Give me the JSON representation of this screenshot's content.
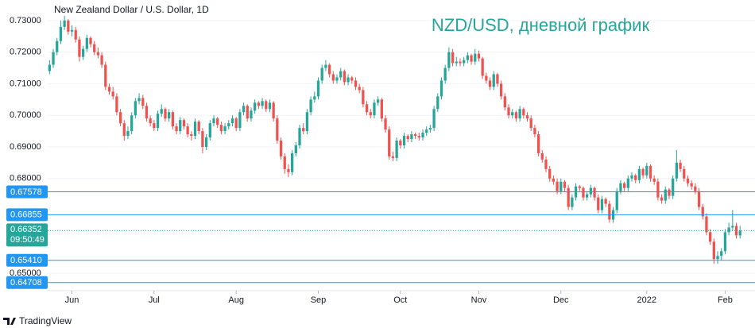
{
  "chart_data": {
    "type": "candlestick",
    "title": "New Zealand Dollar / U.S. Dollar, 1D",
    "annotation": "NZD/USD, дневной график",
    "footer": "TradingView",
    "up_color": "#26a69a",
    "down_color": "#ef5350",
    "line_color": "#2196f3",
    "ylim": [
      0.6445,
      0.7365
    ],
    "yticks": [
      {
        "value": 0.73,
        "label": "0.73000"
      },
      {
        "value": 0.72,
        "label": "0.72000"
      },
      {
        "value": 0.71,
        "label": "0.71000"
      },
      {
        "value": 0.7,
        "label": "0.70000"
      },
      {
        "value": 0.69,
        "label": "0.69000"
      },
      {
        "value": 0.68,
        "label": "0.68000"
      },
      {
        "value": 0.65,
        "label": "0.65000"
      }
    ],
    "xlim": [
      -0.5,
      189
    ],
    "xticks": [
      {
        "value": 6,
        "label": "Jun"
      },
      {
        "value": 28,
        "label": "Jul"
      },
      {
        "value": 50,
        "label": "Aug"
      },
      {
        "value": 72,
        "label": "Sep"
      },
      {
        "value": 94,
        "label": "Oct"
      },
      {
        "value": 115,
        "label": "Nov"
      },
      {
        "value": 137,
        "label": "Dec"
      },
      {
        "value": 160,
        "label": "2022"
      },
      {
        "value": 181,
        "label": "Feb"
      }
    ],
    "price_lines": [
      {
        "value": 0.67578,
        "label": "0.67578"
      },
      {
        "value": 0.66855,
        "label": "0.66855"
      },
      {
        "value": 0.6541,
        "label": "0.65410"
      },
      {
        "value": 0.64708,
        "label": "0.64708"
      }
    ],
    "current_price": {
      "value": 0.66352,
      "label": "0.66352",
      "countdown": "09:50:49"
    },
    "candles": [
      [
        0.714,
        0.7175,
        0.713,
        0.716
      ],
      [
        0.716,
        0.721,
        0.715,
        0.72
      ],
      [
        0.72,
        0.7245,
        0.719,
        0.7235
      ],
      [
        0.7235,
        0.73,
        0.7225,
        0.728
      ],
      [
        0.728,
        0.7315,
        0.727,
        0.73
      ],
      [
        0.73,
        0.7305,
        0.7255,
        0.7265
      ],
      [
        0.7265,
        0.7285,
        0.725,
        0.727
      ],
      [
        0.727,
        0.728,
        0.723,
        0.724
      ],
      [
        0.724,
        0.725,
        0.717,
        0.7185
      ],
      [
        0.7185,
        0.722,
        0.7175,
        0.721
      ],
      [
        0.721,
        0.7255,
        0.72,
        0.7245
      ],
      [
        0.7245,
        0.725,
        0.7215,
        0.7225
      ],
      [
        0.7225,
        0.7235,
        0.719,
        0.72
      ],
      [
        0.72,
        0.7215,
        0.718,
        0.719
      ],
      [
        0.719,
        0.72,
        0.715,
        0.716
      ],
      [
        0.716,
        0.717,
        0.708,
        0.709
      ],
      [
        0.709,
        0.71,
        0.7065,
        0.7075
      ],
      [
        0.7075,
        0.709,
        0.705,
        0.706
      ],
      [
        0.706,
        0.707,
        0.7,
        0.701
      ],
      [
        0.701,
        0.702,
        0.6965,
        0.6975
      ],
      [
        0.6975,
        0.6985,
        0.692,
        0.6935
      ],
      [
        0.6935,
        0.6965,
        0.6925,
        0.695
      ],
      [
        0.695,
        0.701,
        0.694,
        0.7
      ],
      [
        0.7,
        0.7055,
        0.699,
        0.7045
      ],
      [
        0.7045,
        0.707,
        0.7035,
        0.7055
      ],
      [
        0.7055,
        0.7065,
        0.702,
        0.703
      ],
      [
        0.703,
        0.704,
        0.698,
        0.699
      ],
      [
        0.699,
        0.7,
        0.6965,
        0.6975
      ],
      [
        0.6975,
        0.6985,
        0.695,
        0.696
      ],
      [
        0.696,
        0.7015,
        0.695,
        0.7005
      ],
      [
        0.7005,
        0.7035,
        0.6995,
        0.702
      ],
      [
        0.702,
        0.7025,
        0.698,
        0.699
      ],
      [
        0.699,
        0.702,
        0.698,
        0.701
      ],
      [
        0.701,
        0.7015,
        0.6955,
        0.6965
      ],
      [
        0.6965,
        0.6975,
        0.694,
        0.695
      ],
      [
        0.695,
        0.6995,
        0.694,
        0.6985
      ],
      [
        0.6985,
        0.699,
        0.6955,
        0.6965
      ],
      [
        0.6965,
        0.6975,
        0.693,
        0.694
      ],
      [
        0.694,
        0.695,
        0.692,
        0.6935
      ],
      [
        0.6935,
        0.699,
        0.6925,
        0.698
      ],
      [
        0.698,
        0.6985,
        0.694,
        0.695
      ],
      [
        0.695,
        0.696,
        0.688,
        0.69
      ],
      [
        0.69,
        0.694,
        0.689,
        0.693
      ],
      [
        0.693,
        0.6985,
        0.692,
        0.6975
      ],
      [
        0.6975,
        0.7,
        0.6965,
        0.699
      ],
      [
        0.699,
        0.6995,
        0.696,
        0.697
      ],
      [
        0.697,
        0.698,
        0.694,
        0.695
      ],
      [
        0.695,
        0.6975,
        0.694,
        0.6965
      ],
      [
        0.6965,
        0.6985,
        0.6955,
        0.6975
      ],
      [
        0.6975,
        0.7,
        0.6965,
        0.699
      ],
      [
        0.699,
        0.6995,
        0.695,
        0.696
      ],
      [
        0.696,
        0.702,
        0.695,
        0.701
      ],
      [
        0.701,
        0.704,
        0.7,
        0.703
      ],
      [
        0.703,
        0.7035,
        0.698,
        0.699
      ],
      [
        0.699,
        0.7025,
        0.698,
        0.7015
      ],
      [
        0.7015,
        0.705,
        0.7005,
        0.704
      ],
      [
        0.704,
        0.7045,
        0.702,
        0.703
      ],
      [
        0.703,
        0.7055,
        0.702,
        0.7045
      ],
      [
        0.7045,
        0.705,
        0.701,
        0.702
      ],
      [
        0.702,
        0.705,
        0.701,
        0.704
      ],
      [
        0.704,
        0.7045,
        0.698,
        0.699
      ],
      [
        0.699,
        0.7,
        0.691,
        0.692
      ],
      [
        0.692,
        0.693,
        0.686,
        0.687
      ],
      [
        0.687,
        0.688,
        0.6815,
        0.683
      ],
      [
        0.683,
        0.6845,
        0.6805,
        0.682
      ],
      [
        0.682,
        0.689,
        0.681,
        0.688
      ],
      [
        0.688,
        0.6915,
        0.687,
        0.6905
      ],
      [
        0.6905,
        0.697,
        0.6895,
        0.696
      ],
      [
        0.696,
        0.6975,
        0.694,
        0.695
      ],
      [
        0.695,
        0.702,
        0.694,
        0.701
      ],
      [
        0.701,
        0.706,
        0.7,
        0.705
      ],
      [
        0.705,
        0.7075,
        0.704,
        0.706
      ],
      [
        0.706,
        0.712,
        0.705,
        0.711
      ],
      [
        0.711,
        0.716,
        0.71,
        0.715
      ],
      [
        0.715,
        0.7175,
        0.714,
        0.716
      ],
      [
        0.716,
        0.7165,
        0.712,
        0.713
      ],
      [
        0.713,
        0.714,
        0.71,
        0.711
      ],
      [
        0.711,
        0.713,
        0.71,
        0.712
      ],
      [
        0.712,
        0.715,
        0.711,
        0.714
      ],
      [
        0.714,
        0.7145,
        0.7095,
        0.7105
      ],
      [
        0.7105,
        0.713,
        0.7095,
        0.712
      ],
      [
        0.712,
        0.7125,
        0.71,
        0.711
      ],
      [
        0.711,
        0.712,
        0.708,
        0.709
      ],
      [
        0.709,
        0.71,
        0.707,
        0.708
      ],
      [
        0.708,
        0.709,
        0.7025,
        0.7035
      ],
      [
        0.7035,
        0.7045,
        0.7,
        0.701
      ],
      [
        0.701,
        0.702,
        0.699,
        0.7
      ],
      [
        0.7,
        0.705,
        0.699,
        0.704
      ],
      [
        0.704,
        0.706,
        0.703,
        0.705
      ],
      [
        0.705,
        0.7055,
        0.698,
        0.699
      ],
      [
        0.699,
        0.7,
        0.6945,
        0.6955
      ],
      [
        0.6955,
        0.6965,
        0.686,
        0.687
      ],
      [
        0.687,
        0.6885,
        0.6855,
        0.6865
      ],
      [
        0.6865,
        0.693,
        0.6855,
        0.692
      ],
      [
        0.692,
        0.6925,
        0.6895,
        0.6905
      ],
      [
        0.6905,
        0.6945,
        0.6895,
        0.6935
      ],
      [
        0.6935,
        0.694,
        0.6915,
        0.6925
      ],
      [
        0.6925,
        0.695,
        0.6915,
        0.694
      ],
      [
        0.694,
        0.6945,
        0.6925,
        0.6935
      ],
      [
        0.6935,
        0.6945,
        0.692,
        0.693
      ],
      [
        0.693,
        0.6955,
        0.692,
        0.6945
      ],
      [
        0.6945,
        0.6965,
        0.6935,
        0.6955
      ],
      [
        0.6955,
        0.697,
        0.6945,
        0.696
      ],
      [
        0.696,
        0.703,
        0.695,
        0.702
      ],
      [
        0.702,
        0.707,
        0.701,
        0.706
      ],
      [
        0.706,
        0.712,
        0.705,
        0.711
      ],
      [
        0.711,
        0.716,
        0.71,
        0.715
      ],
      [
        0.715,
        0.7215,
        0.714,
        0.72
      ],
      [
        0.72,
        0.721,
        0.7155,
        0.7165
      ],
      [
        0.7165,
        0.7185,
        0.7155,
        0.717
      ],
      [
        0.717,
        0.718,
        0.7155,
        0.7165
      ],
      [
        0.7165,
        0.7185,
        0.7155,
        0.7175
      ],
      [
        0.7175,
        0.72,
        0.7165,
        0.719
      ],
      [
        0.719,
        0.7195,
        0.716,
        0.717
      ],
      [
        0.717,
        0.721,
        0.716,
        0.7195
      ],
      [
        0.7195,
        0.7205,
        0.717,
        0.718
      ],
      [
        0.718,
        0.7185,
        0.7115,
        0.7125
      ],
      [
        0.7125,
        0.7135,
        0.71,
        0.711
      ],
      [
        0.711,
        0.712,
        0.708,
        0.709
      ],
      [
        0.709,
        0.714,
        0.708,
        0.713
      ],
      [
        0.713,
        0.7135,
        0.709,
        0.71
      ],
      [
        0.71,
        0.711,
        0.705,
        0.706
      ],
      [
        0.706,
        0.707,
        0.7015,
        0.7025
      ],
      [
        0.7025,
        0.7035,
        0.699,
        0.7
      ],
      [
        0.7,
        0.702,
        0.699,
        0.701
      ],
      [
        0.701,
        0.7015,
        0.698,
        0.699
      ],
      [
        0.699,
        0.703,
        0.698,
        0.702
      ],
      [
        0.702,
        0.7025,
        0.699,
        0.7
      ],
      [
        0.7,
        0.701,
        0.698,
        0.699
      ],
      [
        0.699,
        0.7,
        0.695,
        0.696
      ],
      [
        0.696,
        0.697,
        0.693,
        0.694
      ],
      [
        0.694,
        0.695,
        0.687,
        0.688
      ],
      [
        0.688,
        0.689,
        0.685,
        0.686
      ],
      [
        0.686,
        0.687,
        0.682,
        0.683
      ],
      [
        0.683,
        0.684,
        0.679,
        0.68
      ],
      [
        0.68,
        0.681,
        0.678,
        0.679
      ],
      [
        0.679,
        0.68,
        0.675,
        0.676
      ],
      [
        0.676,
        0.68,
        0.675,
        0.679
      ],
      [
        0.679,
        0.6795,
        0.676,
        0.677
      ],
      [
        0.677,
        0.678,
        0.67,
        0.671
      ],
      [
        0.671,
        0.675,
        0.67,
        0.674
      ],
      [
        0.674,
        0.6785,
        0.673,
        0.6775
      ],
      [
        0.6775,
        0.678,
        0.676,
        0.677
      ],
      [
        0.677,
        0.6775,
        0.673,
        0.674
      ],
      [
        0.674,
        0.676,
        0.673,
        0.675
      ],
      [
        0.675,
        0.678,
        0.674,
        0.677
      ],
      [
        0.677,
        0.6775,
        0.673,
        0.674
      ],
      [
        0.674,
        0.675,
        0.669,
        0.67
      ],
      [
        0.67,
        0.6745,
        0.669,
        0.6735
      ],
      [
        0.6735,
        0.674,
        0.671,
        0.672
      ],
      [
        0.672,
        0.673,
        0.666,
        0.667
      ],
      [
        0.667,
        0.671,
        0.666,
        0.67
      ],
      [
        0.67,
        0.677,
        0.669,
        0.676
      ],
      [
        0.676,
        0.6795,
        0.675,
        0.6785
      ],
      [
        0.6785,
        0.679,
        0.676,
        0.677
      ],
      [
        0.677,
        0.681,
        0.676,
        0.68
      ],
      [
        0.68,
        0.682,
        0.679,
        0.681
      ],
      [
        0.681,
        0.6815,
        0.6785,
        0.6795
      ],
      [
        0.6795,
        0.684,
        0.6785,
        0.683
      ],
      [
        0.683,
        0.6835,
        0.68,
        0.681
      ],
      [
        0.681,
        0.685,
        0.68,
        0.684
      ],
      [
        0.684,
        0.6845,
        0.679,
        0.68
      ],
      [
        0.68,
        0.681,
        0.678,
        0.679
      ],
      [
        0.679,
        0.68,
        0.673,
        0.674
      ],
      [
        0.674,
        0.675,
        0.672,
        0.673
      ],
      [
        0.673,
        0.6775,
        0.672,
        0.6765
      ],
      [
        0.6765,
        0.677,
        0.6735,
        0.6745
      ],
      [
        0.6745,
        0.681,
        0.6735,
        0.68
      ],
      [
        0.68,
        0.689,
        0.679,
        0.685
      ],
      [
        0.685,
        0.686,
        0.682,
        0.683
      ],
      [
        0.683,
        0.684,
        0.679,
        0.68
      ],
      [
        0.68,
        0.681,
        0.6775,
        0.6785
      ],
      [
        0.6785,
        0.6795,
        0.6765,
        0.6775
      ],
      [
        0.6775,
        0.6785,
        0.675,
        0.676
      ],
      [
        0.676,
        0.677,
        0.67,
        0.671
      ],
      [
        0.671,
        0.672,
        0.667,
        0.668
      ],
      [
        0.668,
        0.669,
        0.662,
        0.663
      ],
      [
        0.663,
        0.664,
        0.659,
        0.66
      ],
      [
        0.66,
        0.661,
        0.653,
        0.6545
      ],
      [
        0.6545,
        0.657,
        0.653,
        0.6555
      ],
      [
        0.6555,
        0.658,
        0.654,
        0.657
      ],
      [
        0.657,
        0.664,
        0.656,
        0.663
      ],
      [
        0.663,
        0.666,
        0.662,
        0.6645
      ],
      [
        0.6645,
        0.67,
        0.6635,
        0.665
      ],
      [
        0.665,
        0.666,
        0.661,
        0.662
      ],
      [
        0.662,
        0.665,
        0.661,
        0.6635
      ]
    ]
  }
}
